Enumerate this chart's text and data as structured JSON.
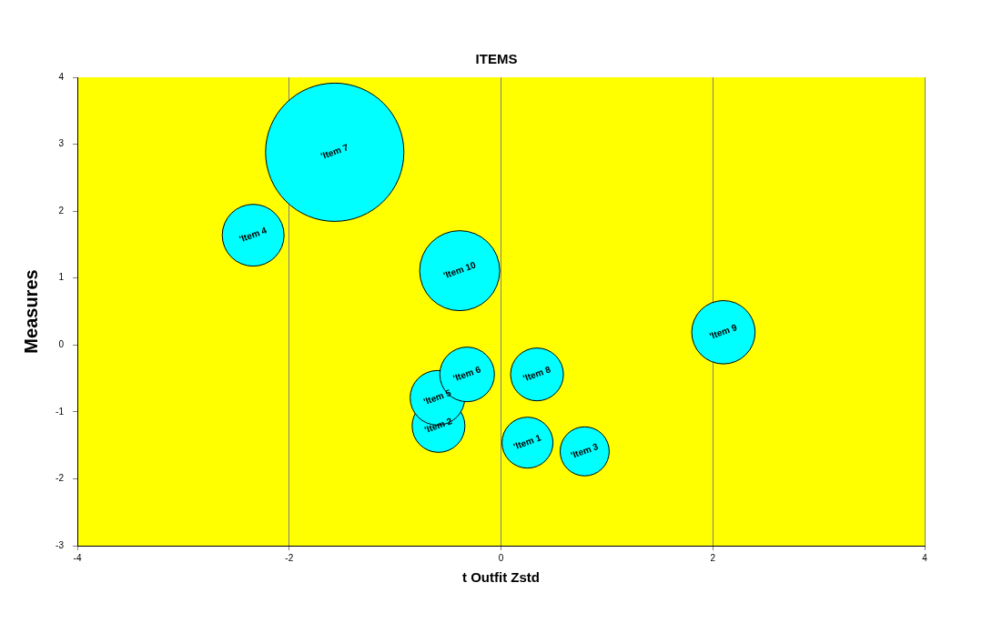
{
  "chart_data": {
    "type": "bubble",
    "title": "ITEMS",
    "xlabel": "t Outfit Zstd",
    "ylabel": "Measures",
    "x": [
      0.25,
      -0.59,
      0.79,
      -2.34,
      -0.6,
      -0.32,
      -1.57,
      0.34,
      2.1,
      -0.39
    ],
    "values": [
      -1.46,
      -1.21,
      -1.59,
      1.64,
      -0.79,
      -0.44,
      2.88,
      -0.44,
      0.19,
      1.11
    ],
    "sizes": [
      0.136,
      0.146,
      0.126,
      0.2,
      0.156,
      0.156,
      1,
      0.146,
      0.21,
      0.335
    ],
    "color": "#00ffff",
    "xlim": [
      -4,
      4
    ],
    "xticks": [
      -4,
      -2,
      0,
      2,
      4
    ],
    "ylim": [
      -3,
      4
    ],
    "yticks": [
      -3,
      -2,
      -1,
      0,
      1,
      2,
      3,
      4
    ],
    "grid": "x",
    "legend": false,
    "annotations": [
      {
        "text": "'Item 1",
        "x": 0.25,
        "y": -1.46
      },
      {
        "text": "'Item 2",
        "x": -0.59,
        "y": -1.21
      },
      {
        "text": "'Item 3",
        "x": 0.79,
        "y": -1.59
      },
      {
        "text": "'Item 4",
        "x": -2.34,
        "y": 1.64
      },
      {
        "text": "'Item 5",
        "x": -0.6,
        "y": -0.79
      },
      {
        "text": "'Item 6",
        "x": -0.32,
        "y": -0.44
      },
      {
        "text": "'Item 7",
        "x": -1.57,
        "y": 2.88
      },
      {
        "text": "'Item 8",
        "x": 0.34,
        "y": -0.44
      },
      {
        "text": "'Item 9",
        "x": 2.1,
        "y": 0.19
      },
      {
        "text": "'Item 10",
        "x": -0.39,
        "y": 1.11
      }
    ]
  }
}
